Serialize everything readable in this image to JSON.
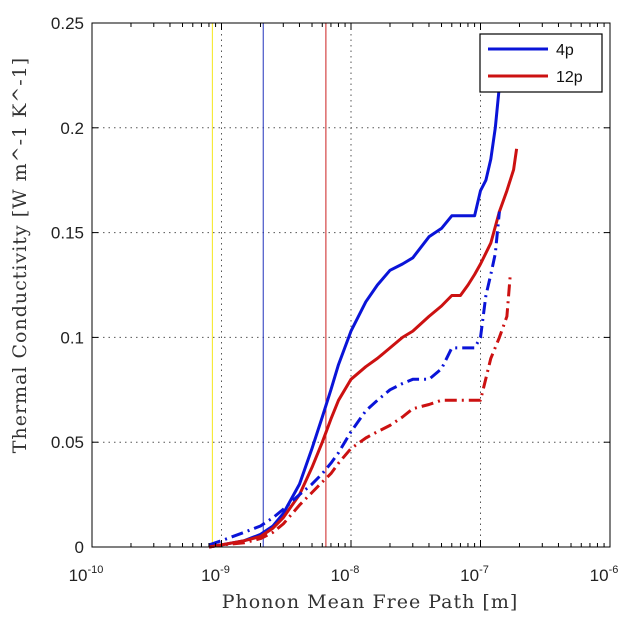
{
  "chart_data": {
    "type": "line",
    "title": "",
    "xlabel": "Phonon Mean Free Path [m]",
    "ylabel": "Thermal Conductivity [W m^-1 K^-1]",
    "xscale": "log",
    "xlim": [
      1e-10,
      1e-06
    ],
    "ylim": [
      0,
      0.25
    ],
    "x_ticks": [
      {
        "base": "10",
        "exp": "-10",
        "value": 1e-10
      },
      {
        "base": "10",
        "exp": "-9",
        "value": 1e-09
      },
      {
        "base": "10",
        "exp": "-8",
        "value": 1e-08
      },
      {
        "base": "10",
        "exp": "-7",
        "value": 1e-07
      },
      {
        "base": "10",
        "exp": "-6",
        "value": 1e-06
      }
    ],
    "y_ticks": [
      "0",
      "0.05",
      "0.1",
      "0.15",
      "0.2",
      "0.25"
    ],
    "y_tick_values": [
      0,
      0.05,
      0.1,
      0.15,
      0.2,
      0.25
    ],
    "grid": "horizontal dotted",
    "legend_position": "top-right",
    "vertical_lines": [
      {
        "x": 8.5e-10,
        "color": "#f5e61a"
      },
      {
        "x": 2.1e-09,
        "color": "#2233bb"
      },
      {
        "x": 6.4e-09,
        "color": "#cc2020"
      }
    ],
    "series": [
      {
        "name": "4p",
        "color": "#0a14d8",
        "style": "solid",
        "x": [
          8e-10,
          1e-09,
          1.5e-09,
          2e-09,
          2.5e-09,
          3e-09,
          4e-09,
          5e-09,
          6e-09,
          7e-09,
          8e-09,
          1e-08,
          1.3e-08,
          1.6e-08,
          2e-08,
          2.5e-08,
          3e-08,
          4e-08,
          5e-08,
          6e-08,
          7e-08,
          8e-08,
          9e-08,
          1e-07,
          1.1e-07,
          1.2e-07,
          1.3e-07,
          1.4e-07,
          1.45e-07
        ],
        "y": [
          0,
          0.001,
          0.003,
          0.006,
          0.01,
          0.016,
          0.03,
          0.047,
          0.062,
          0.075,
          0.087,
          0.103,
          0.117,
          0.125,
          0.132,
          0.135,
          0.138,
          0.148,
          0.152,
          0.158,
          0.158,
          0.158,
          0.158,
          0.17,
          0.175,
          0.185,
          0.2,
          0.22,
          0.245
        ]
      },
      {
        "name": "12p",
        "color": "#cc1111",
        "style": "solid",
        "x": [
          8e-10,
          1e-09,
          1.5e-09,
          2e-09,
          2.5e-09,
          3e-09,
          4e-09,
          5e-09,
          6e-09,
          7e-09,
          8e-09,
          1e-08,
          1.3e-08,
          1.6e-08,
          2e-08,
          2.5e-08,
          3e-08,
          4e-08,
          5e-08,
          6e-08,
          7e-08,
          8e-08,
          9e-08,
          1e-07,
          1.2e-07,
          1.4e-07,
          1.6e-07,
          1.8e-07,
          1.9e-07
        ],
        "y": [
          0,
          0.001,
          0.003,
          0.005,
          0.009,
          0.014,
          0.025,
          0.038,
          0.05,
          0.061,
          0.07,
          0.08,
          0.086,
          0.09,
          0.095,
          0.1,
          0.103,
          0.11,
          0.115,
          0.12,
          0.12,
          0.125,
          0.13,
          0.135,
          0.145,
          0.16,
          0.17,
          0.18,
          0.19
        ]
      },
      {
        "name": "",
        "color": "#0a14d8",
        "style": "dashdot",
        "x": [
          8e-10,
          1e-09,
          1.5e-09,
          2e-09,
          2.5e-09,
          3e-09,
          4e-09,
          5e-09,
          6e-09,
          7e-09,
          8e-09,
          1e-08,
          1.3e-08,
          1.6e-08,
          2e-08,
          2.5e-08,
          3e-08,
          4e-08,
          5e-08,
          6e-08,
          7e-08,
          8e-08,
          9e-08,
          1e-07,
          1.1e-07,
          1.2e-07,
          1.3e-07,
          1.4e-07
        ],
        "y": [
          0.001,
          0.003,
          0.007,
          0.01,
          0.014,
          0.018,
          0.025,
          0.03,
          0.035,
          0.04,
          0.045,
          0.055,
          0.065,
          0.07,
          0.075,
          0.078,
          0.08,
          0.08,
          0.085,
          0.095,
          0.095,
          0.095,
          0.095,
          0.1,
          0.12,
          0.13,
          0.14,
          0.16
        ]
      },
      {
        "name": "",
        "color": "#cc1111",
        "style": "dashdot",
        "x": [
          8e-10,
          1e-09,
          1.5e-09,
          2e-09,
          2.5e-09,
          3e-09,
          4e-09,
          5e-09,
          6e-09,
          7e-09,
          8e-09,
          1e-08,
          1.3e-08,
          1.6e-08,
          2e-08,
          2.5e-08,
          3e-08,
          4e-08,
          5e-08,
          6e-08,
          7e-08,
          8e-08,
          9e-08,
          1e-07,
          1.2e-07,
          1.4e-07,
          1.6e-07,
          1.7e-07
        ],
        "y": [
          0,
          0.001,
          0.002,
          0.004,
          0.007,
          0.011,
          0.02,
          0.026,
          0.031,
          0.035,
          0.04,
          0.047,
          0.052,
          0.055,
          0.058,
          0.062,
          0.066,
          0.068,
          0.07,
          0.07,
          0.07,
          0.07,
          0.07,
          0.07,
          0.09,
          0.1,
          0.11,
          0.13
        ]
      }
    ]
  }
}
